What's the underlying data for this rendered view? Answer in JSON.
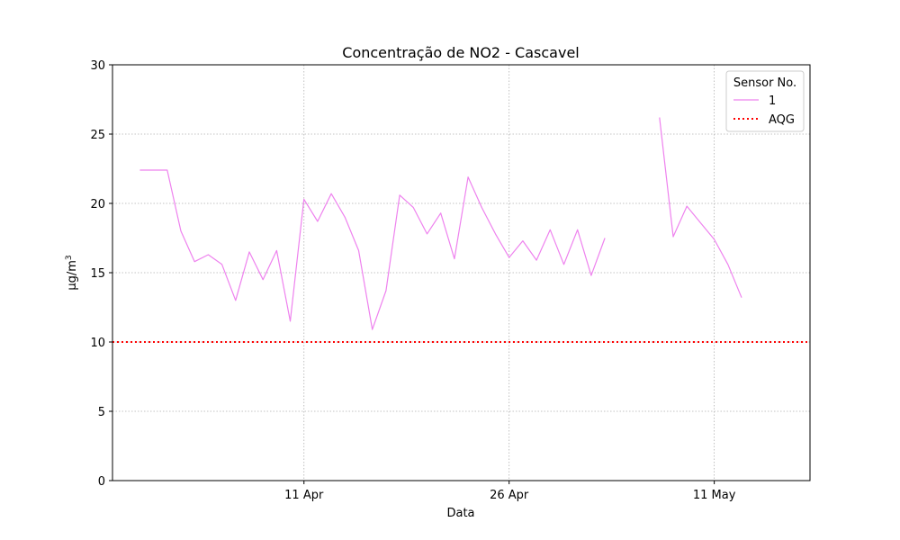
{
  "chart_data": {
    "type": "line",
    "title": "Concentração de NO2 - Cascavel",
    "xlabel": "Data",
    "ylabel": "µg/m",
    "ylabel_sup": "3",
    "ylim": [
      0,
      30
    ],
    "yticks": [
      0,
      5,
      10,
      15,
      20,
      25,
      30
    ],
    "xlim": [
      "2023-03-28",
      "2023-05-18"
    ],
    "xticks": [
      {
        "date": "2023-04-11",
        "label": "11 Apr"
      },
      {
        "date": "2023-04-26",
        "label": "26 Apr"
      },
      {
        "date": "2023-05-11",
        "label": "11 May"
      }
    ],
    "grid": true,
    "legend": {
      "title": "Sensor No.",
      "placement": "top-right"
    },
    "series": [
      {
        "name": "1",
        "color": "#ee82ee",
        "points": [
          [
            "2023-03-30",
            22.4
          ],
          [
            "2023-03-31",
            22.4
          ],
          [
            "2023-04-01",
            22.4
          ],
          [
            "2023-04-02",
            18.0
          ],
          [
            "2023-04-03",
            15.8
          ],
          [
            "2023-04-04",
            16.3
          ],
          [
            "2023-04-05",
            15.6
          ],
          [
            "2023-04-06",
            13.0
          ],
          [
            "2023-04-07",
            16.5
          ],
          [
            "2023-04-08",
            14.5
          ],
          [
            "2023-04-09",
            16.6
          ],
          [
            "2023-04-10",
            11.5
          ],
          [
            "2023-04-11",
            20.3
          ],
          [
            "2023-04-12",
            18.7
          ],
          [
            "2023-04-13",
            20.7
          ],
          [
            "2023-04-14",
            19.0
          ],
          [
            "2023-04-15",
            16.6
          ],
          [
            "2023-04-16",
            10.9
          ],
          [
            "2023-04-17",
            13.7
          ],
          [
            "2023-04-18",
            20.6
          ],
          [
            "2023-04-19",
            19.7
          ],
          [
            "2023-04-20",
            17.8
          ],
          [
            "2023-04-21",
            19.3
          ],
          [
            "2023-04-22",
            16.0
          ],
          [
            "2023-04-23",
            21.9
          ],
          [
            "2023-04-24",
            19.7
          ],
          [
            "2023-04-25",
            17.8
          ],
          [
            "2023-04-26",
            16.1
          ],
          [
            "2023-04-27",
            17.3
          ],
          [
            "2023-04-28",
            15.9
          ],
          [
            "2023-04-29",
            18.1
          ],
          [
            "2023-04-30",
            15.6
          ],
          [
            "2023-05-01",
            18.1
          ],
          [
            "2023-05-02",
            14.8
          ],
          [
            "2023-05-03",
            17.5
          ],
          [
            "2023-05-04",
            null
          ],
          [
            "2023-05-05",
            null
          ],
          [
            "2023-05-06",
            null
          ],
          [
            "2023-05-07",
            26.2
          ],
          [
            "2023-05-08",
            17.6
          ],
          [
            "2023-05-09",
            19.8
          ],
          [
            "2023-05-10",
            18.6
          ],
          [
            "2023-05-11",
            17.4
          ],
          [
            "2023-05-12",
            15.6
          ],
          [
            "2023-05-13",
            13.2
          ]
        ]
      }
    ],
    "reference_lines": [
      {
        "name": "AQG",
        "value": 10,
        "color": "#ff0000",
        "style": "dotted"
      }
    ]
  }
}
